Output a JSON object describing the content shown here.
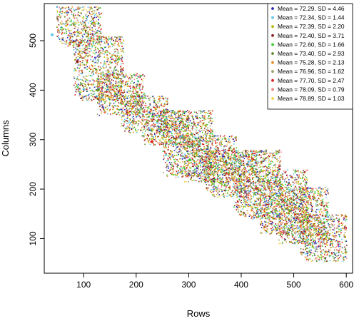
{
  "chart_data": {
    "type": "scatter",
    "title": "",
    "xlabel": "Rows",
    "ylabel": "Columns",
    "xlim": [
      25,
      612
    ],
    "ylim": [
      30,
      575
    ],
    "x_ticks": [
      100,
      200,
      300,
      400,
      500,
      600
    ],
    "y_ticks": [
      100,
      200,
      300,
      400,
      500
    ],
    "legend_position": "top-right",
    "grid": false,
    "series": [
      {
        "name": "Mean = 72.29, SD = 4.46",
        "mean": 72.29,
        "sd": 4.46,
        "color": "#2a2ab5"
      },
      {
        "name": "Mean = 72.34, SD = 1.44",
        "mean": 72.34,
        "sd": 1.44,
        "color": "#59c7e8"
      },
      {
        "name": "Mean = 72.39, SD = 2.20",
        "mean": 72.39,
        "sd": 2.2,
        "color": "#b8b800"
      },
      {
        "name": "Mean = 72.40, SD = 3.71",
        "mean": 72.4,
        "sd": 3.71,
        "color": "#8b1a1a"
      },
      {
        "name": "Mean = 72.60, SD = 1.66",
        "mean": 72.6,
        "sd": 1.66,
        "color": "#32cd32"
      },
      {
        "name": "Mean = 73.40, SD = 2.93",
        "mean": 73.4,
        "sd": 2.93,
        "color": "#5a8a2a"
      },
      {
        "name": "Mean = 75.28, SD = 2.13",
        "mean": 75.28,
        "sd": 2.13,
        "color": "#e08a1e"
      },
      {
        "name": "Mean = 76.96, SD = 1.62",
        "mean": 76.96,
        "sd": 1.62,
        "color": "#9aa06a"
      },
      {
        "name": "Mean = 77.70, SD = 2.47",
        "mean": 77.7,
        "sd": 2.47,
        "color": "#e01b1b"
      },
      {
        "name": "Mean = 78.09, SD = 0.79",
        "mean": 78.09,
        "sd": 0.79,
        "color": "#f08080"
      },
      {
        "name": "Mean = 78.89, SD = 1.03",
        "mean": 78.89,
        "sd": 1.03,
        "color": "#f2d24a"
      }
    ],
    "blocks": [
      {
        "x": [
          48,
          133
        ],
        "y": [
          490,
          570
        ]
      },
      {
        "x": [
          80,
          175
        ],
        "y": [
          380,
          510
        ]
      },
      {
        "x": [
          125,
          215
        ],
        "y": [
          350,
          435
        ]
      },
      {
        "x": [
          170,
          260
        ],
        "y": [
          315,
          390
        ]
      },
      {
        "x": [
          210,
          300
        ],
        "y": [
          290,
          360
        ]
      },
      {
        "x": [
          250,
          345
        ],
        "y": [
          225,
          360
        ]
      },
      {
        "x": [
          290,
          390
        ],
        "y": [
          215,
          310
        ]
      },
      {
        "x": [
          330,
          430
        ],
        "y": [
          185,
          280
        ]
      },
      {
        "x": [
          385,
          475
        ],
        "y": [
          140,
          280
        ]
      },
      {
        "x": [
          430,
          525
        ],
        "y": [
          110,
          240
        ]
      },
      {
        "x": [
          470,
          565
        ],
        "y": [
          90,
          205
        ]
      },
      {
        "x": [
          510,
          600
        ],
        "y": [
          55,
          150
        ]
      }
    ],
    "outliers": [
      {
        "x": 40,
        "y": 512,
        "color": "#59c7e8"
      },
      {
        "x": 88,
        "y": 458,
        "color": "#8b1a1a"
      },
      {
        "x": 128,
        "y": 401,
        "color": "#5a8a2a"
      },
      {
        "x": 230,
        "y": 296,
        "color": "#e01b1b"
      },
      {
        "x": 302,
        "y": 259,
        "color": "#32cd32"
      }
    ]
  }
}
